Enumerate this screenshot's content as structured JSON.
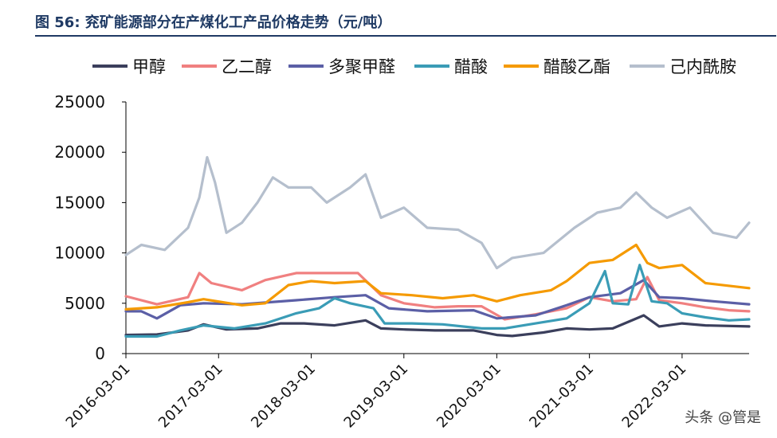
{
  "title": "图 56: 兖矿能源部分在产煤化工产品价格走势（元/吨）",
  "watermark": "头条 @管是",
  "chart_data": {
    "type": "line",
    "title": "图 56: 兖矿能源部分在产煤化工产品价格走势（元/吨）",
    "xlabel": "",
    "ylabel": "",
    "ylim": [
      0,
      25000
    ],
    "yticks": [
      0,
      5000,
      10000,
      15000,
      20000,
      25000
    ],
    "xlim": [
      "2016-03-01",
      "2022-11-20"
    ],
    "xticks": [
      "2016-03-01",
      "2017-03-01",
      "2018-03-01",
      "2019-03-01",
      "2020-03-01",
      "2021-03-01",
      "2022-03-01"
    ],
    "legend_position": "top",
    "grid": false,
    "series": [
      {
        "name": "甲醇",
        "color": "#3b3f5c",
        "points": [
          [
            "2016-03-01",
            1850
          ],
          [
            "2016-07-01",
            1900
          ],
          [
            "2016-11-01",
            2300
          ],
          [
            "2017-01-01",
            2900
          ],
          [
            "2017-04-01",
            2400
          ],
          [
            "2017-08-01",
            2500
          ],
          [
            "2017-11-01",
            3000
          ],
          [
            "2018-02-01",
            3000
          ],
          [
            "2018-06-01",
            2800
          ],
          [
            "2018-10-01",
            3300
          ],
          [
            "2018-12-01",
            2500
          ],
          [
            "2019-03-01",
            2400
          ],
          [
            "2019-07-01",
            2300
          ],
          [
            "2019-12-01",
            2300
          ],
          [
            "2020-03-01",
            1850
          ],
          [
            "2020-05-01",
            1750
          ],
          [
            "2020-09-01",
            2100
          ],
          [
            "2020-12-01",
            2500
          ],
          [
            "2021-03-01",
            2400
          ],
          [
            "2021-06-01",
            2500
          ],
          [
            "2021-10-01",
            3800
          ],
          [
            "2021-12-01",
            2700
          ],
          [
            "2022-03-01",
            3000
          ],
          [
            "2022-06-01",
            2800
          ],
          [
            "2022-11-20",
            2700
          ]
        ]
      },
      {
        "name": "乙二醇",
        "color": "#f08080",
        "points": [
          [
            "2016-03-01",
            5700
          ],
          [
            "2016-07-01",
            4900
          ],
          [
            "2016-11-01",
            5600
          ],
          [
            "2016-12-15",
            8000
          ],
          [
            "2017-02-01",
            7000
          ],
          [
            "2017-06-01",
            6300
          ],
          [
            "2017-09-01",
            7300
          ],
          [
            "2018-01-01",
            8000
          ],
          [
            "2018-05-01",
            8000
          ],
          [
            "2018-09-01",
            8000
          ],
          [
            "2018-12-01",
            5800
          ],
          [
            "2019-03-01",
            5000
          ],
          [
            "2019-07-01",
            4600
          ],
          [
            "2019-10-01",
            4700
          ],
          [
            "2020-01-01",
            4700
          ],
          [
            "2020-04-01",
            3400
          ],
          [
            "2020-08-01",
            3900
          ],
          [
            "2020-12-01",
            4500
          ],
          [
            "2021-03-01",
            5600
          ],
          [
            "2021-06-01",
            5200
          ],
          [
            "2021-09-01",
            5400
          ],
          [
            "2021-10-15",
            7600
          ],
          [
            "2021-12-01",
            5300
          ],
          [
            "2022-03-01",
            5000
          ],
          [
            "2022-06-01",
            4600
          ],
          [
            "2022-09-01",
            4300
          ],
          [
            "2022-11-20",
            4200
          ]
        ]
      },
      {
        "name": "多聚甲醛",
        "color": "#5b5fa6",
        "points": [
          [
            "2016-03-01",
            4200
          ],
          [
            "2016-05-01",
            4200
          ],
          [
            "2016-07-01",
            3500
          ],
          [
            "2016-10-01",
            4800
          ],
          [
            "2017-01-01",
            5000
          ],
          [
            "2017-06-01",
            4900
          ],
          [
            "2018-01-01",
            5300
          ],
          [
            "2018-06-01",
            5600
          ],
          [
            "2018-10-01",
            5800
          ],
          [
            "2019-01-01",
            4500
          ],
          [
            "2019-06-01",
            4200
          ],
          [
            "2019-12-01",
            4300
          ],
          [
            "2020-03-01",
            3500
          ],
          [
            "2020-08-01",
            3800
          ],
          [
            "2020-12-01",
            4800
          ],
          [
            "2021-03-01",
            5600
          ],
          [
            "2021-07-01",
            6000
          ],
          [
            "2021-10-01",
            7300
          ],
          [
            "2021-12-01",
            5600
          ],
          [
            "2022-03-01",
            5500
          ],
          [
            "2022-07-01",
            5200
          ],
          [
            "2022-11-20",
            4900
          ]
        ]
      },
      {
        "name": "醋酸",
        "color": "#3a9cb6",
        "points": [
          [
            "2016-03-01",
            1700
          ],
          [
            "2016-07-01",
            1700
          ],
          [
            "2016-10-01",
            2300
          ],
          [
            "2017-01-01",
            2800
          ],
          [
            "2017-05-01",
            2500
          ],
          [
            "2017-09-01",
            3000
          ],
          [
            "2018-01-01",
            4000
          ],
          [
            "2018-04-01",
            4500
          ],
          [
            "2018-06-01",
            5500
          ],
          [
            "2018-08-01",
            5000
          ],
          [
            "2018-11-01",
            4500
          ],
          [
            "2018-12-15",
            3000
          ],
          [
            "2019-04-01",
            3000
          ],
          [
            "2019-08-01",
            2900
          ],
          [
            "2020-01-01",
            2500
          ],
          [
            "2020-04-01",
            2500
          ],
          [
            "2020-08-01",
            3000
          ],
          [
            "2020-12-01",
            3500
          ],
          [
            "2021-03-01",
            5000
          ],
          [
            "2021-05-01",
            8200
          ],
          [
            "2021-06-01",
            5000
          ],
          [
            "2021-08-01",
            4900
          ],
          [
            "2021-09-15",
            8800
          ],
          [
            "2021-11-01",
            5200
          ],
          [
            "2022-01-01",
            5000
          ],
          [
            "2022-03-01",
            4000
          ],
          [
            "2022-06-01",
            3600
          ],
          [
            "2022-09-01",
            3300
          ],
          [
            "2022-11-20",
            3400
          ]
        ]
      },
      {
        "name": "醋酸乙酯",
        "color": "#f59a00",
        "points": [
          [
            "2016-03-01",
            4400
          ],
          [
            "2016-07-01",
            4600
          ],
          [
            "2016-11-01",
            5100
          ],
          [
            "2017-01-01",
            5400
          ],
          [
            "2017-06-01",
            4800
          ],
          [
            "2017-09-01",
            5000
          ],
          [
            "2017-12-01",
            6800
          ],
          [
            "2018-03-01",
            7200
          ],
          [
            "2018-06-01",
            7000
          ],
          [
            "2018-10-01",
            7200
          ],
          [
            "2018-12-01",
            6000
          ],
          [
            "2019-04-01",
            5800
          ],
          [
            "2019-08-01",
            5500
          ],
          [
            "2019-12-01",
            5800
          ],
          [
            "2020-03-01",
            5200
          ],
          [
            "2020-06-01",
            5800
          ],
          [
            "2020-10-01",
            6300
          ],
          [
            "2020-12-01",
            7200
          ],
          [
            "2021-03-01",
            9000
          ],
          [
            "2021-06-01",
            9300
          ],
          [
            "2021-09-01",
            10800
          ],
          [
            "2021-10-15",
            9000
          ],
          [
            "2021-12-01",
            8500
          ],
          [
            "2022-03-01",
            8800
          ],
          [
            "2022-06-01",
            7000
          ],
          [
            "2022-11-20",
            6500
          ]
        ]
      },
      {
        "name": "己内酰胺",
        "color": "#b5bfcd",
        "points": [
          [
            "2016-03-01",
            9800
          ],
          [
            "2016-05-01",
            10800
          ],
          [
            "2016-08-01",
            10300
          ],
          [
            "2016-11-01",
            12500
          ],
          [
            "2016-12-15",
            15500
          ],
          [
            "2017-01-15",
            19500
          ],
          [
            "2017-02-15",
            17000
          ],
          [
            "2017-04-01",
            12000
          ],
          [
            "2017-06-01",
            13000
          ],
          [
            "2017-08-01",
            15000
          ],
          [
            "2017-10-01",
            17500
          ],
          [
            "2017-12-01",
            16500
          ],
          [
            "2018-03-01",
            16500
          ],
          [
            "2018-05-01",
            15000
          ],
          [
            "2018-08-01",
            16500
          ],
          [
            "2018-10-01",
            17800
          ],
          [
            "2018-12-01",
            13500
          ],
          [
            "2019-03-01",
            14500
          ],
          [
            "2019-06-01",
            12500
          ],
          [
            "2019-10-01",
            12300
          ],
          [
            "2020-01-01",
            11000
          ],
          [
            "2020-03-01",
            8500
          ],
          [
            "2020-05-01",
            9500
          ],
          [
            "2020-09-01",
            10000
          ],
          [
            "2021-01-01",
            12500
          ],
          [
            "2021-04-01",
            14000
          ],
          [
            "2021-07-01",
            14500
          ],
          [
            "2021-09-01",
            16000
          ],
          [
            "2021-11-01",
            14500
          ],
          [
            "2022-01-01",
            13500
          ],
          [
            "2022-04-01",
            14500
          ],
          [
            "2022-07-01",
            12000
          ],
          [
            "2022-10-01",
            11500
          ],
          [
            "2022-11-20",
            13000
          ]
        ]
      }
    ]
  }
}
